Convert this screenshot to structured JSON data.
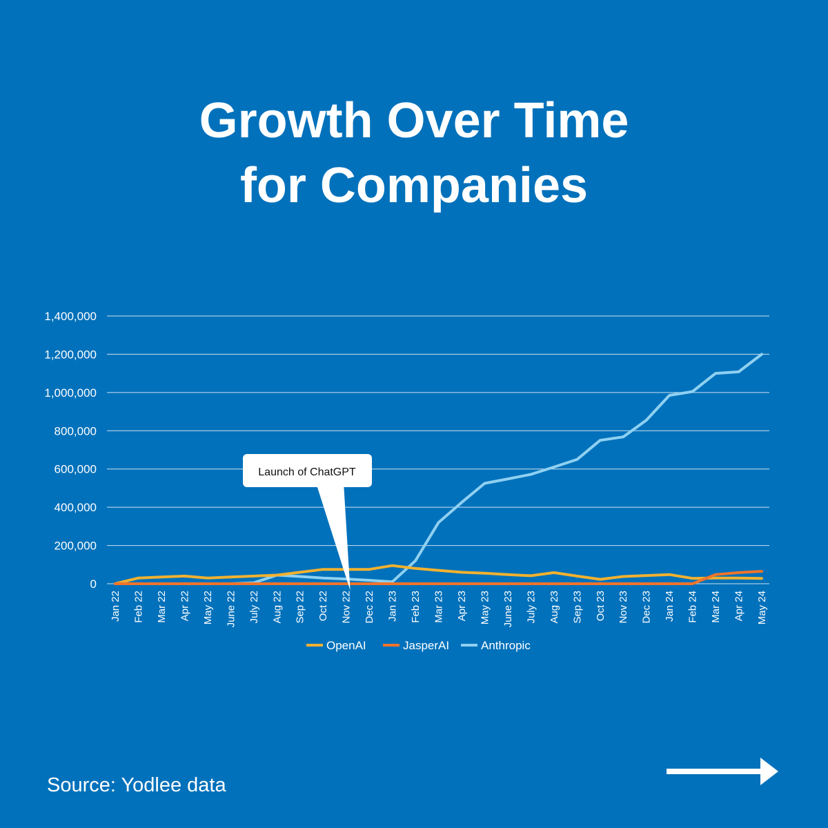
{
  "title": {
    "line1": "Growth Over Time",
    "line2": "for Companies"
  },
  "source": "Source: Yodlee data",
  "colors": {
    "background": "#0171bb",
    "OpenAI": "#f1b12f",
    "JasperAI": "#f0742a",
    "Anthropic": "#8fd0f1"
  },
  "chart_data": {
    "type": "line",
    "title": "Growth Over Time for Companies",
    "xlabel": "",
    "ylabel": "",
    "ylim": [
      0,
      1400000
    ],
    "yticks": [
      0,
      200000,
      400000,
      600000,
      800000,
      1000000,
      1200000,
      1400000
    ],
    "ytick_labels": [
      "0",
      "200,000",
      "400,000",
      "600,000",
      "800,000",
      "1,000,000",
      "1,200,000",
      "1,400,000"
    ],
    "grid": true,
    "legend": "bottom",
    "categories": [
      "Jan 22",
      "Feb 22",
      "Mar 22",
      "Apr 22",
      "May 22",
      "June 22",
      "July 22",
      "Aug 22",
      "Sep 22",
      "Oct 22",
      "Nov 22",
      "Dec 22",
      "Jan 23",
      "Feb 23",
      "Mar 23",
      "Apr 23",
      "May 23",
      "June 23",
      "July 23",
      "Aug 23",
      "Sep 23",
      "Oct 23",
      "Nov 23",
      "Dec 23",
      "Jan 24",
      "Feb 24",
      "Mar 24",
      "Apr 24",
      "May 24"
    ],
    "series": [
      {
        "name": "OpenAI",
        "color": "#f1b12f",
        "values": [
          0,
          30000,
          35000,
          40000,
          30000,
          35000,
          40000,
          45000,
          60000,
          75000,
          75000,
          75000,
          95000,
          80000,
          70000,
          60000,
          55000,
          48000,
          42000,
          58000,
          40000,
          23000,
          38000,
          43000,
          48000,
          28000,
          30000,
          30000,
          28000
        ]
      },
      {
        "name": "JasperAI",
        "color": "#f0742a",
        "values": [
          0,
          0,
          0,
          0,
          0,
          0,
          0,
          0,
          0,
          0,
          0,
          0,
          0,
          0,
          0,
          0,
          0,
          0,
          0,
          0,
          0,
          0,
          0,
          0,
          0,
          0,
          48000,
          58000,
          65000
        ]
      },
      {
        "name": "Anthropic",
        "color": "#8fd0f1",
        "values": [
          0,
          0,
          0,
          0,
          0,
          0,
          5000,
          45000,
          38000,
          30000,
          25000,
          18000,
          10000,
          120000,
          320000,
          425000,
          525000,
          548000,
          572000,
          610000,
          650000,
          750000,
          768000,
          855000,
          985000,
          1005000,
          1100000,
          1108000,
          1200000
        ]
      }
    ],
    "annotations": [
      {
        "text": "Launch of ChatGPT",
        "x": "Nov 22",
        "y": 0
      }
    ]
  }
}
